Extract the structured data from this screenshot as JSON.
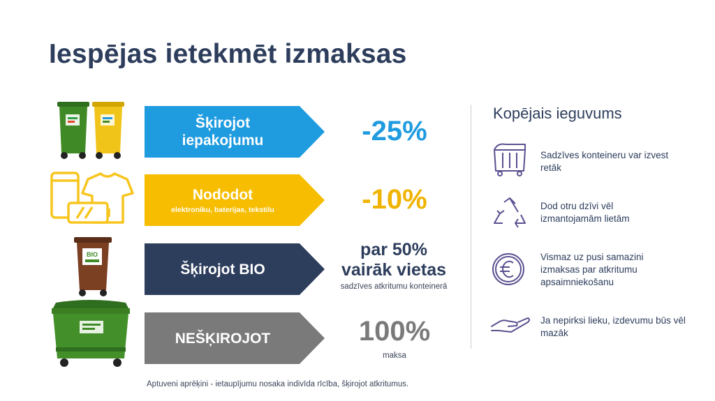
{
  "title": "Iespējas ietekmēt izmaksas",
  "rows": [
    {
      "line1": "Šķirojot",
      "line2": "iepakojumu",
      "value": "-25%",
      "color": "#1f9be0",
      "value_color": "#1f9be0",
      "icon": "packaging-bins-icon"
    },
    {
      "line1": "Nododot",
      "sub": "elektroniku, baterijas, tekstilu",
      "value": "-10%",
      "color": "#f7bd00",
      "value_color": "#f0b400",
      "icon": "electronics-battery-textile-icon"
    },
    {
      "line1": "Šķirojot BIO",
      "value_line1": "par 50%",
      "value_line2": "vairāk vietas",
      "value_sub": "sadzīves atkritumu konteinerā",
      "color": "#2d3d5c",
      "value_color": "#2d3d5c",
      "icon": "bio-bin-icon",
      "bin_label": "BIO"
    },
    {
      "line1": "NEŠĶIROJOT",
      "value": "100%",
      "value_sub": "maksa",
      "color": "#7a7a7a",
      "value_color": "#7a7a7a",
      "icon": "large-container-icon"
    }
  ],
  "benefits": {
    "title": "Kopējais ieguvums",
    "items": [
      {
        "text": "Sadzīves konteineru var izvest retāk",
        "icon": "container-icon"
      },
      {
        "text": "Dod otru dzīvi vēl izmantojamām lietām",
        "icon": "recycle-icon"
      },
      {
        "text": "Vismaz uz pusi samazini izmaksas par atkritumu apsaimniekošanu",
        "icon": "euro-icon"
      },
      {
        "text": "Ja nepirksi lieku, izdevumu būs vēl mazāk",
        "icon": "hand-icon"
      }
    ],
    "icon_color": "#5a5090"
  },
  "footnote": "Aptuveni aprēķini - ietaupījumu nosaka indivīda rīcība, šķirojot atkritumus."
}
